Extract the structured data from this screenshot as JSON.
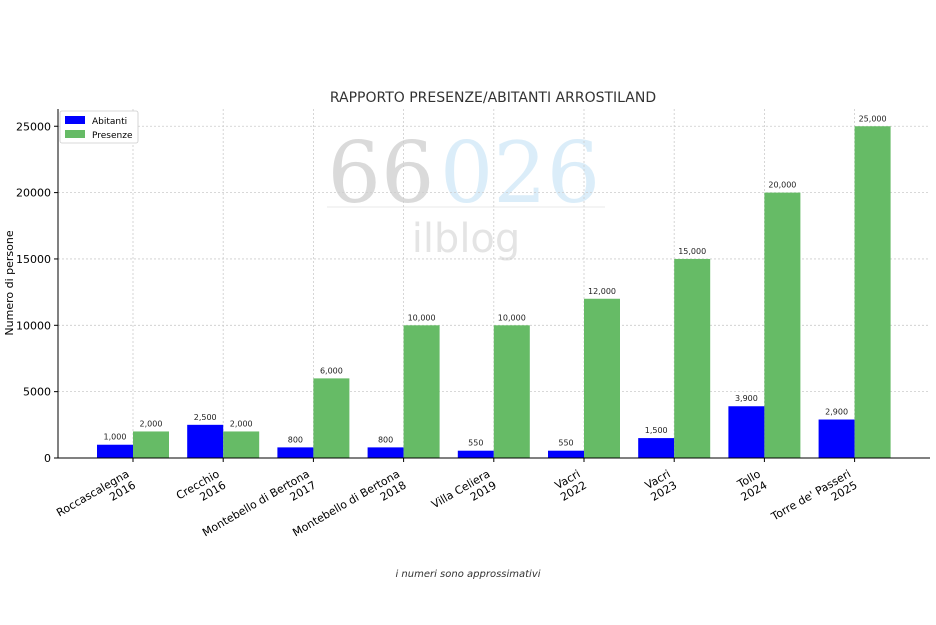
{
  "chart_data": {
    "type": "bar",
    "title": "RAPPORTO PRESENZE/ABITANTI ARROSTILAND",
    "xlabel": "",
    "ylabel": "Numero di persone",
    "ylim": [
      0,
      26300
    ],
    "yticks": [
      0,
      5000,
      10000,
      15000,
      20000,
      25000
    ],
    "grid": true,
    "legend_position": "top-left",
    "categories": [
      [
        "Roccascalegna",
        "2016"
      ],
      [
        "Crecchio",
        "2016"
      ],
      [
        "Montebello di Bertona",
        "2017"
      ],
      [
        "Montebello di Bertona",
        "2018"
      ],
      [
        "Villa Celiera",
        "2019"
      ],
      [
        "Vacri",
        "2022"
      ],
      [
        "Vacri",
        "2023"
      ],
      [
        "Tollo",
        "2024"
      ],
      [
        "Torre de' Passeri",
        "2025"
      ]
    ],
    "series": [
      {
        "name": "Abitanti",
        "color": "#0000ff",
        "values": [
          1000,
          2500,
          800,
          800,
          550,
          550,
          1500,
          3900,
          2900
        ],
        "labels": [
          "1,000",
          "2,500",
          "800",
          "800",
          "550",
          "550",
          "1,500",
          "3,900",
          "2,900"
        ]
      },
      {
        "name": "Presenze",
        "color": "#66bb66",
        "values": [
          2000,
          2000,
          6000,
          10000,
          10000,
          12000,
          15000,
          20000,
          25000
        ],
        "labels": [
          "2,000",
          "2,000",
          "6,000",
          "10,000",
          "10,000",
          "12,000",
          "15,000",
          "20,000",
          "25,000"
        ]
      }
    ]
  },
  "watermark": {
    "number_left": "66",
    "number_right": "026",
    "text": "ilblog"
  },
  "footnote": "i numeri sono approssimativi"
}
